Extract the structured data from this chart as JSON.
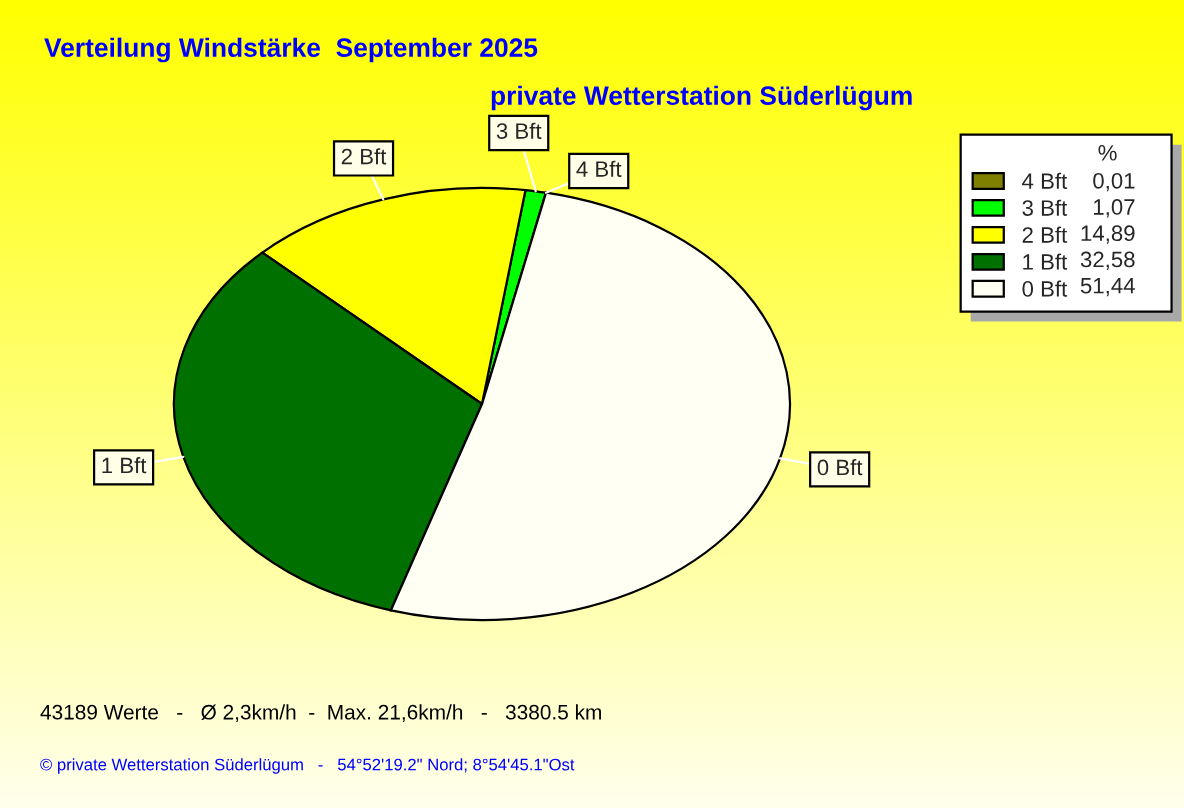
{
  "chart_data": {
    "type": "pie",
    "title": "Verteilung Windstärke  September 2025",
    "subtitle": "private Wetterstation Süderlügum",
    "categories": [
      "4 Bft",
      "3 Bft",
      "2 Bft",
      "1 Bft",
      "0 Bft"
    ],
    "values": [
      0.01,
      1.07,
      14.89,
      32.58,
      51.44
    ],
    "value_labels": [
      "0,01",
      "1,07",
      "14,89",
      "32,58",
      "51,44"
    ],
    "colors": [
      "#808000",
      "#00ff00",
      "#ffff00",
      "#007000",
      "#fffff4"
    ],
    "legend_title": "%",
    "legend": "top right",
    "annotations": [
      "43189 Werte   -   Ø 2,3km/h  -  Max. 21,6km/h   -   3380.5 km",
      "© private Wetterstation Süderlügum   -   54°52'19.2\" Nord; 8°54'45.1\"Ost"
    ]
  }
}
